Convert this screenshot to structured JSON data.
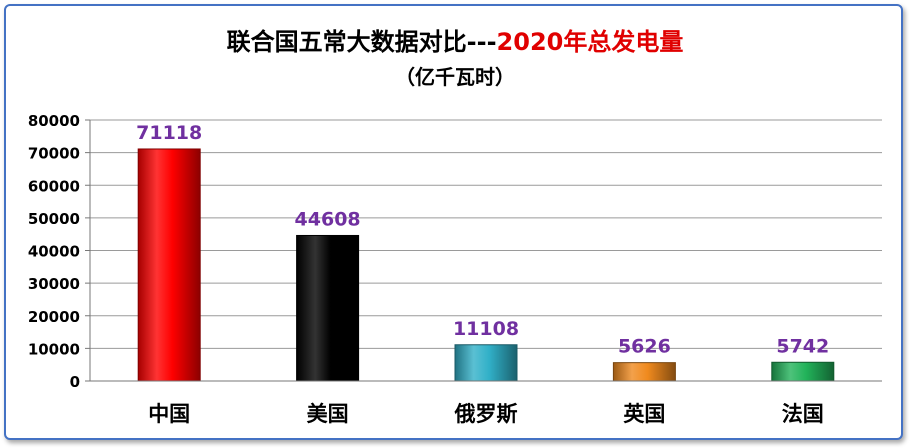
{
  "chart_data": {
    "type": "bar",
    "title_part1": "联合国五常大数据对比---",
    "title_part2": "2020年总发电量",
    "subtitle": "（亿千瓦时）",
    "categories": [
      "中国",
      "美国",
      "俄罗斯",
      "英国",
      "法国"
    ],
    "values": [
      71118,
      44608,
      11108,
      5626,
      5742
    ],
    "value_labels": [
      "71118",
      "44608",
      "11108",
      "5626",
      "5742"
    ],
    "colors": [
      "#FF0000",
      "#000000",
      "#31B0C8",
      "#F08A1E",
      "#22B35A"
    ],
    "label_color": "#7030A0",
    "title_highlight_color": "#E00000",
    "ylim": [
      0,
      80000
    ],
    "yticks": [
      0,
      10000,
      20000,
      30000,
      40000,
      50000,
      60000,
      70000,
      80000
    ],
    "ytick_labels": [
      "0",
      "10000",
      "20000",
      "30000",
      "40000",
      "50000",
      "60000",
      "70000",
      "80000"
    ],
    "grid": true,
    "legend": "none"
  }
}
